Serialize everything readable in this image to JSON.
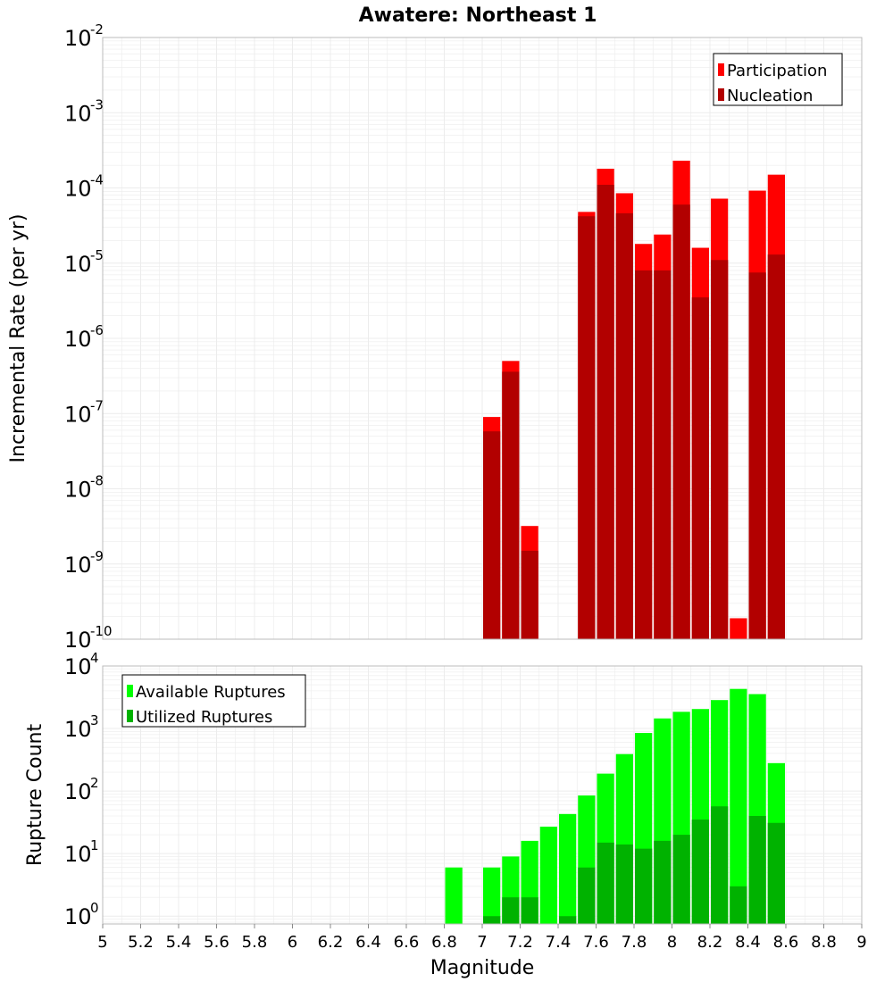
{
  "colors": {
    "participation": "#ff0000",
    "nucleation": "#b20000",
    "available": "#00ff00",
    "utilized": "#00b200",
    "grid": "#ececec",
    "border": "#bbbbbb",
    "background": "#ffffff"
  },
  "chart_data": [
    {
      "type": "bar",
      "title": "Awatere: Northeast 1",
      "ylabel": "Incremental Rate (per yr)",
      "xlabel": "",
      "yscale": "log",
      "xlim": [
        5,
        9
      ],
      "ylim": [
        1e-10,
        0.01
      ],
      "y_tick_exponents": [
        -2,
        -3,
        -4,
        -5,
        -6,
        -7,
        -8,
        -9,
        -10
      ],
      "y_tick_base": "10",
      "grid": true,
      "legend_position": "top-right",
      "legend": [
        "Participation",
        "Nucleation"
      ],
      "bin_width": 0.1,
      "series": [
        {
          "name": "Participation",
          "x": [
            7.05,
            7.15,
            7.25,
            7.55,
            7.65,
            7.75,
            7.85,
            7.95,
            8.05,
            8.15,
            8.25,
            8.35,
            8.45,
            8.55
          ],
          "values": [
            9e-08,
            5e-07,
            3.2e-09,
            4.8e-05,
            0.00018,
            8.5e-05,
            1.8e-05,
            2.4e-05,
            0.00023,
            1.6e-05,
            7.2e-05,
            1.9e-10,
            9.2e-05,
            0.00015
          ]
        },
        {
          "name": "Nucleation",
          "x": [
            7.05,
            7.15,
            7.25,
            7.55,
            7.65,
            7.75,
            7.85,
            7.95,
            8.05,
            8.15,
            8.25,
            8.35,
            8.45,
            8.55
          ],
          "values": [
            5.8e-08,
            3.6e-07,
            1.5e-09,
            4.2e-05,
            0.00011,
            4.6e-05,
            8e-06,
            8e-06,
            6e-05,
            3.5e-06,
            1.1e-05,
            0,
            7.5e-06,
            1.3e-05
          ]
        }
      ]
    },
    {
      "type": "bar",
      "title": "",
      "ylabel": "Rupture Count",
      "xlabel": "Magnitude",
      "yscale": "log",
      "xlim": [
        5,
        9
      ],
      "ylim": [
        0.75,
        10000
      ],
      "y_tick_exponents": [
        4,
        3,
        2,
        1,
        0
      ],
      "y_tick_base": "10",
      "x_ticks": [
        "5",
        "5.2",
        "5.4",
        "5.6",
        "5.8",
        "6",
        "6.2",
        "6.4",
        "6.6",
        "6.8",
        "7",
        "7.2",
        "7.4",
        "7.6",
        "7.8",
        "8",
        "8.2",
        "8.4",
        "8.6",
        "8.8",
        "9"
      ],
      "grid": true,
      "legend_position": "top-left",
      "legend": [
        "Available Ruptures",
        "Utilized Ruptures"
      ],
      "bin_width": 0.1,
      "series": [
        {
          "name": "Available Ruptures",
          "x": [
            6.85,
            7.05,
            7.15,
            7.25,
            7.35,
            7.45,
            7.55,
            7.65,
            7.75,
            7.85,
            7.95,
            8.05,
            8.15,
            8.25,
            8.35,
            8.45,
            8.55
          ],
          "values": [
            6,
            6,
            9,
            16,
            27,
            43,
            85,
            190,
            390,
            850,
            1450,
            1850,
            2050,
            2850,
            4300,
            3550,
            280
          ]
        },
        {
          "name": "Utilized Ruptures",
          "x": [
            6.85,
            7.05,
            7.15,
            7.25,
            7.35,
            7.45,
            7.55,
            7.65,
            7.75,
            7.85,
            7.95,
            8.05,
            8.15,
            8.25,
            8.35,
            8.45,
            8.55
          ],
          "values": [
            0,
            1,
            2,
            2,
            0,
            1,
            6,
            15,
            14,
            12,
            16,
            20,
            35,
            57,
            3,
            40,
            31
          ]
        }
      ]
    }
  ]
}
